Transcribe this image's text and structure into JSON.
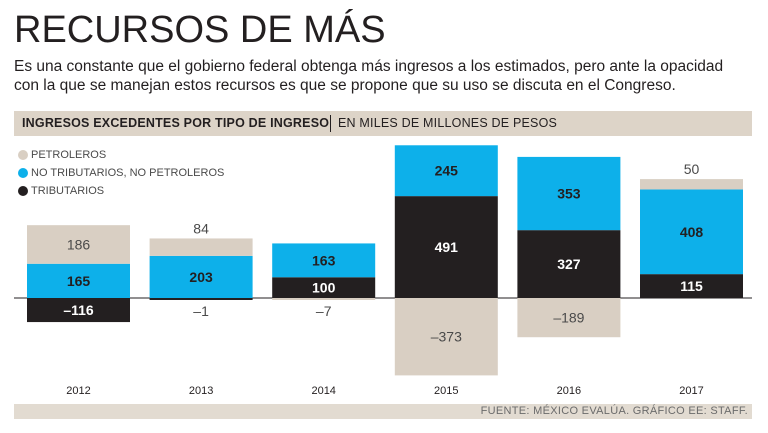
{
  "title": "RECURSOS DE MÁS",
  "subtitle_lines": [
    "Es una constante que el gobierno federal obtenga más ingresos a los estimados, pero ante la opacidad",
    "con la que se manejan estos recursos es que se propone que su uso se discuta en el Congreso."
  ],
  "header": {
    "main": "INGRESOS EXCEDENTES POR TIPO DE INGRESO",
    "sub": "EN MILES DE MILLONES DE PESOS"
  },
  "footer": "FUENTE: MÉXICO EVALÚA. GRÁFICO EE: STAFF.",
  "colors": {
    "petroleros": "#d9cfc3",
    "no_tributarios": "#0db0ea",
    "tributarios": "#231f20"
  },
  "chart_data": {
    "type": "bar",
    "stacked": true,
    "title": "INGRESOS EXCEDENTES POR TIPO DE INGRESO",
    "ylabel": "EN MILES DE MILLONES DE PESOS",
    "categories": [
      "2012",
      "2013",
      "2014",
      "2015",
      "2016",
      "2017"
    ],
    "series": [
      {
        "name": "TRIBUTARIOS",
        "key": "tributarios",
        "values": [
          -116,
          -1,
          100,
          491,
          327,
          115
        ],
        "labels": [
          "–116",
          "",
          "100",
          "491",
          "327",
          "115"
        ]
      },
      {
        "name": "NO TRIBUTARIOS, NO PETROLEROS",
        "key": "no_tributarios",
        "values": [
          165,
          203,
          163,
          245,
          353,
          408
        ],
        "labels": [
          "165",
          "203",
          "163",
          "245",
          "353",
          "408"
        ]
      },
      {
        "name": "PETROLEROS",
        "key": "petroleros",
        "values": [
          186,
          84,
          -7,
          -373,
          -189,
          50
        ],
        "labels": [
          "186",
          "84",
          "–7",
          "–373",
          "–189",
          "50"
        ]
      }
    ],
    "outside_labels": [
      "",
      "–1",
      "",
      "",
      "",
      ""
    ],
    "legend": [
      "PETROLEROS",
      "NO TRIBUTARIOS, NO PETROLEROS",
      "TRIBUTARIOS"
    ],
    "legend_position": "top-left"
  }
}
